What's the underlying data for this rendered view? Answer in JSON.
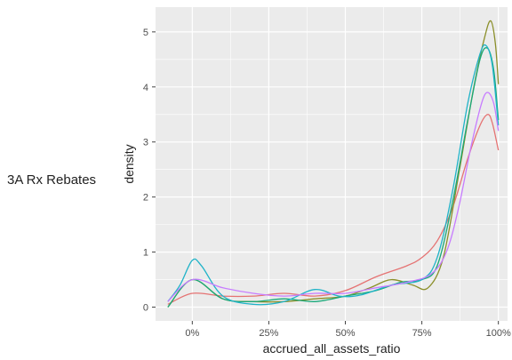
{
  "row_label": "3A Rx Rebates",
  "chart_data": {
    "type": "line",
    "xlabel": "accrued_all_assets_ratio",
    "ylabel": "density",
    "xlim": [
      -0.12,
      1.03
    ],
    "ylim": [
      -0.25,
      5.45
    ],
    "x_ticks": [
      0,
      0.25,
      0.5,
      0.75,
      1.0
    ],
    "x_tick_labels": [
      "0%",
      "25%",
      "50%",
      "75%",
      "100%"
    ],
    "y_ticks": [
      0,
      1,
      2,
      3,
      4,
      5
    ],
    "y_tick_labels": [
      "0",
      "1",
      "2",
      "3",
      "4",
      "5"
    ],
    "grid": true,
    "panel_background": "#ebebeb",
    "grid_color": "#ffffff",
    "series": [
      {
        "color": "#e57373",
        "points": [
          [
            -0.08,
            0.05
          ],
          [
            0,
            0.25
          ],
          [
            0.1,
            0.2
          ],
          [
            0.2,
            0.2
          ],
          [
            0.3,
            0.25
          ],
          [
            0.4,
            0.2
          ],
          [
            0.5,
            0.3
          ],
          [
            0.6,
            0.55
          ],
          [
            0.7,
            0.75
          ],
          [
            0.75,
            0.9
          ],
          [
            0.8,
            1.2
          ],
          [
            0.85,
            1.8
          ],
          [
            0.9,
            2.7
          ],
          [
            0.94,
            3.3
          ],
          [
            0.965,
            3.5
          ],
          [
            0.98,
            3.35
          ],
          [
            1.0,
            2.85
          ]
        ]
      },
      {
        "color": "#8b8f2a",
        "points": [
          [
            -0.08,
            0.0
          ],
          [
            0,
            0.5
          ],
          [
            0.1,
            0.15
          ],
          [
            0.2,
            0.1
          ],
          [
            0.3,
            0.1
          ],
          [
            0.4,
            0.15
          ],
          [
            0.5,
            0.2
          ],
          [
            0.58,
            0.35
          ],
          [
            0.65,
            0.5
          ],
          [
            0.72,
            0.4
          ],
          [
            0.77,
            0.35
          ],
          [
            0.82,
            0.9
          ],
          [
            0.87,
            2.4
          ],
          [
            0.92,
            4.0
          ],
          [
            0.955,
            4.9
          ],
          [
            0.975,
            5.2
          ],
          [
            0.99,
            4.8
          ],
          [
            1.0,
            4.05
          ]
        ]
      },
      {
        "color": "#19a979",
        "points": [
          [
            -0.08,
            0.0
          ],
          [
            0,
            0.5
          ],
          [
            0.1,
            0.15
          ],
          [
            0.2,
            0.1
          ],
          [
            0.3,
            0.15
          ],
          [
            0.4,
            0.1
          ],
          [
            0.5,
            0.2
          ],
          [
            0.6,
            0.3
          ],
          [
            0.68,
            0.45
          ],
          [
            0.75,
            0.5
          ],
          [
            0.8,
            0.75
          ],
          [
            0.85,
            1.9
          ],
          [
            0.9,
            3.4
          ],
          [
            0.94,
            4.5
          ],
          [
            0.965,
            4.7
          ],
          [
            0.985,
            4.3
          ],
          [
            1.0,
            3.4
          ]
        ]
      },
      {
        "color": "#1fb3c8",
        "points": [
          [
            -0.08,
            0.1
          ],
          [
            -0.04,
            0.4
          ],
          [
            0,
            0.85
          ],
          [
            0.03,
            0.75
          ],
          [
            0.1,
            0.2
          ],
          [
            0.2,
            0.05
          ],
          [
            0.3,
            0.1
          ],
          [
            0.4,
            0.32
          ],
          [
            0.48,
            0.2
          ],
          [
            0.55,
            0.22
          ],
          [
            0.65,
            0.4
          ],
          [
            0.75,
            0.5
          ],
          [
            0.8,
            0.9
          ],
          [
            0.85,
            2.1
          ],
          [
            0.9,
            3.7
          ],
          [
            0.94,
            4.6
          ],
          [
            0.96,
            4.75
          ],
          [
            0.98,
            4.4
          ],
          [
            1.0,
            3.3
          ]
        ]
      },
      {
        "color": "#c77cff",
        "points": [
          [
            -0.08,
            0.1
          ],
          [
            0,
            0.5
          ],
          [
            0.1,
            0.35
          ],
          [
            0.2,
            0.25
          ],
          [
            0.3,
            0.2
          ],
          [
            0.4,
            0.25
          ],
          [
            0.5,
            0.25
          ],
          [
            0.6,
            0.35
          ],
          [
            0.7,
            0.45
          ],
          [
            0.78,
            0.6
          ],
          [
            0.83,
            1.0
          ],
          [
            0.87,
            1.8
          ],
          [
            0.91,
            2.9
          ],
          [
            0.945,
            3.7
          ],
          [
            0.965,
            3.9
          ],
          [
            0.985,
            3.7
          ],
          [
            1.0,
            3.2
          ]
        ]
      }
    ]
  }
}
